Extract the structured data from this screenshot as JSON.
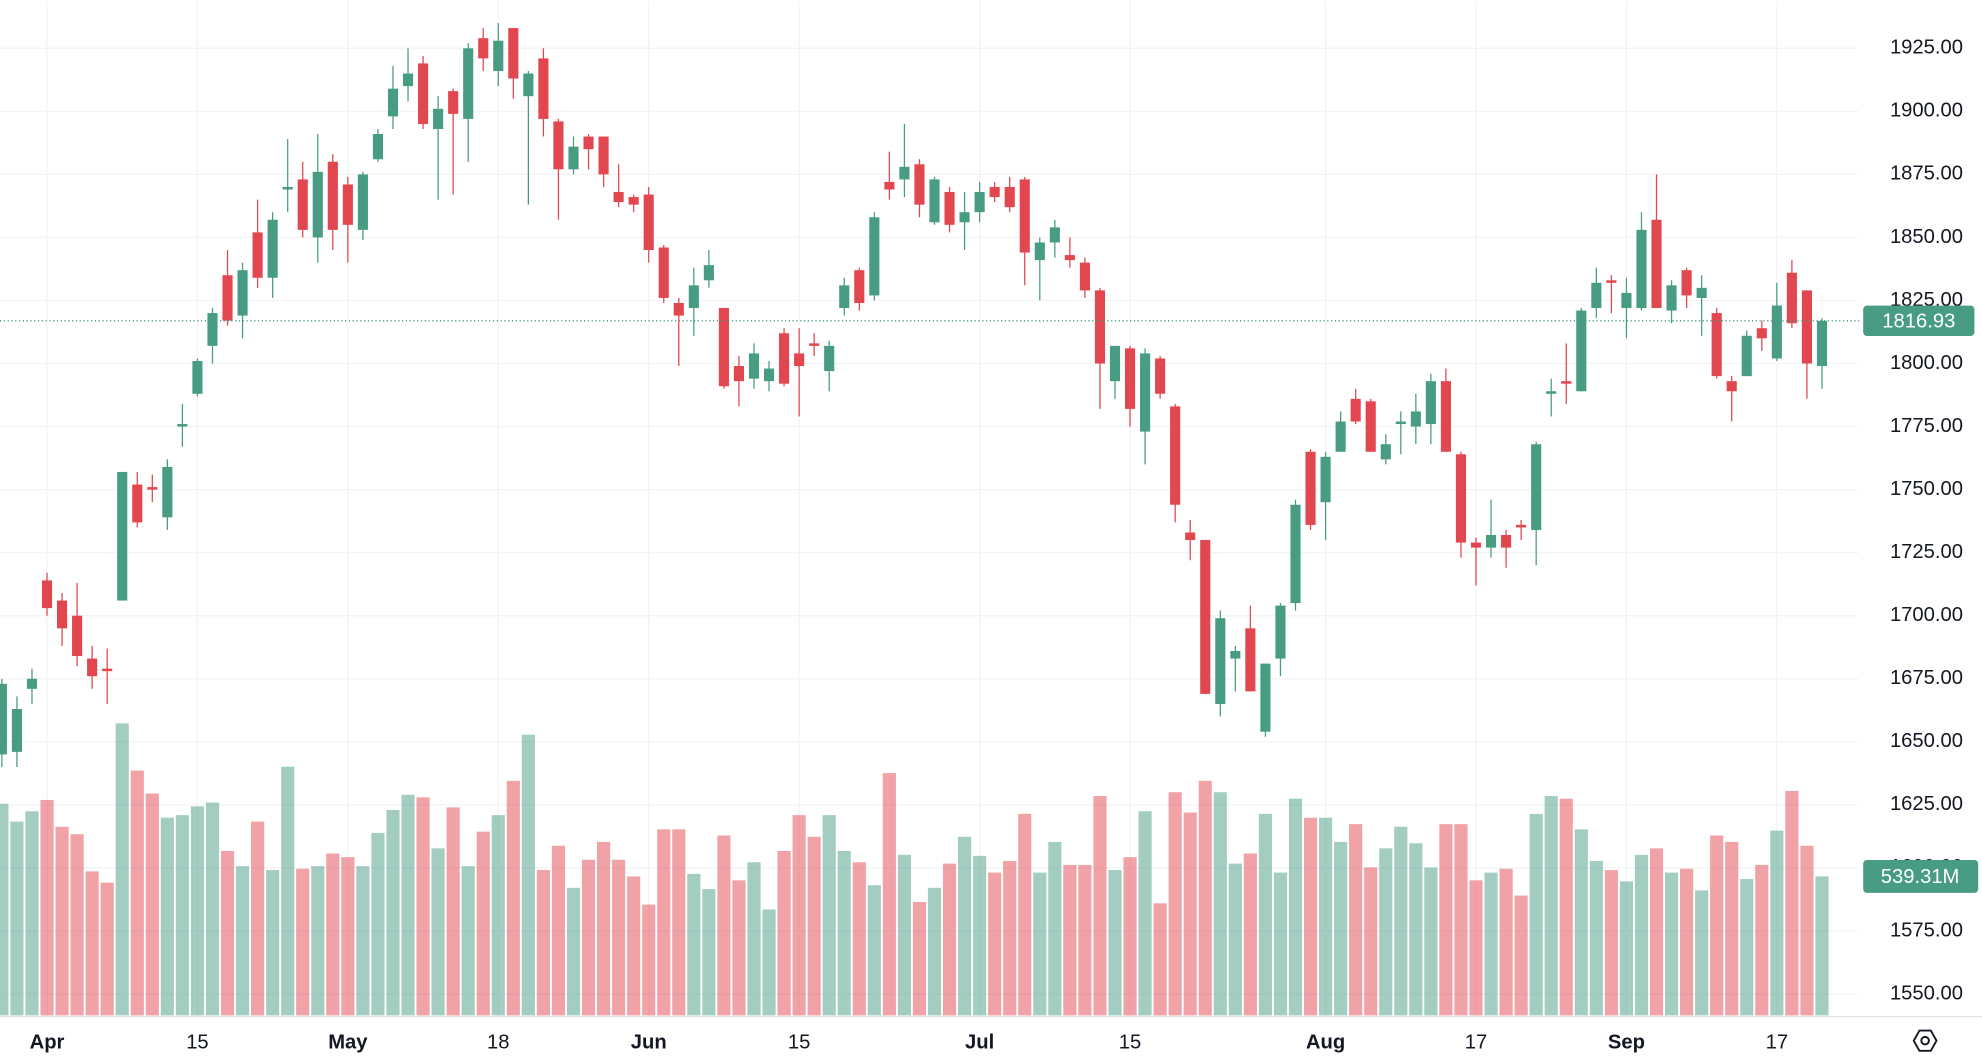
{
  "chart_data": {
    "type": "candlestick",
    "up_color": "#479c83",
    "down_color": "#e2464f",
    "grid": true,
    "categories": [
      null,
      null,
      null,
      "Apr",
      null,
      null,
      null,
      null,
      null,
      null,
      null,
      null,
      null,
      "15",
      null,
      null,
      null,
      null,
      null,
      null,
      null,
      null,
      null,
      "May",
      null,
      null,
      null,
      null,
      null,
      null,
      null,
      null,
      null,
      "18",
      null,
      null,
      null,
      null,
      null,
      null,
      null,
      null,
      null,
      "Jun",
      null,
      null,
      null,
      null,
      null,
      null,
      null,
      null,
      null,
      "15",
      null,
      null,
      null,
      null,
      null,
      null,
      null,
      null,
      null,
      null,
      null,
      "Jul",
      null,
      null,
      null,
      null,
      null,
      null,
      null,
      null,
      null,
      "15",
      null,
      null,
      null,
      null,
      null,
      null,
      null,
      null,
      null,
      null,
      null,
      null,
      "Aug",
      null,
      null,
      null,
      null,
      null,
      null,
      null,
      null,
      null,
      "17",
      null,
      null,
      null,
      null,
      null,
      null,
      null,
      null,
      null,
      "Sep",
      null,
      null,
      null,
      null,
      null,
      null,
      null,
      null,
      null,
      "17",
      null,
      null,
      null
    ],
    "open": [
      1645,
      1646,
      1671,
      1714,
      1706,
      1700,
      1683,
      1679,
      1706,
      1752,
      1751,
      1739,
      1775,
      1788,
      1807,
      1835,
      1819,
      1852,
      1834,
      1869,
      1873,
      1850,
      1880,
      1871,
      1853,
      1881,
      1898,
      1910,
      1919,
      1893,
      1908,
      1897,
      1929,
      1916,
      1933,
      1906,
      1921,
      1896,
      1877,
      1890,
      1890,
      1868,
      1866,
      1867,
      1846,
      1824,
      1822,
      1833,
      1822,
      1799,
      1794,
      1793,
      1812,
      1804,
      1808,
      1797,
      1822,
      1837,
      1827,
      1872,
      1873,
      1879,
      1856,
      1868,
      1856,
      1860,
      1870,
      1870,
      1873,
      1841,
      1848,
      1843,
      1840,
      1829,
      1793,
      1806,
      1773,
      1802,
      1783,
      1733,
      1730,
      1665,
      1683,
      1695,
      1654,
      1683,
      1705,
      1765,
      1745,
      1765,
      1786,
      1785,
      1762,
      1776,
      1775,
      1776,
      1793,
      1764,
      1729,
      1727,
      1732,
      1736,
      1734,
      1788,
      1793,
      1789,
      1822,
      1833,
      1822,
      1822,
      1857,
      1821,
      1837,
      1826,
      1820,
      1793,
      1795,
      1814,
      1802,
      1836,
      1829,
      1799
    ],
    "high": [
      1675,
      1668,
      1679,
      1717,
      1709,
      1713,
      1688,
      1687,
      1757,
      1757,
      1756,
      1762,
      1784,
      1802,
      1822,
      1845,
      1840,
      1865,
      1860,
      1889,
      1880,
      1891,
      1883,
      1874,
      1876,
      1893,
      1918,
      1925,
      1922,
      1906,
      1909,
      1927,
      1933,
      1935,
      1933,
      1916,
      1925,
      1897,
      1890,
      1891,
      1890,
      1879,
      1867,
      1870,
      1847,
      1826,
      1838,
      1845,
      1822,
      1803,
      1808,
      1801,
      1814,
      1814,
      1812,
      1809,
      1834,
      1838,
      1860,
      1884,
      1895,
      1881,
      1874,
      1870,
      1868,
      1872,
      1872,
      1874,
      1874,
      1850,
      1857,
      1850,
      1842,
      1830,
      1807,
      1807,
      1806,
      1803,
      1784,
      1738,
      1730,
      1702,
      1688,
      1704,
      1681,
      1705,
      1746,
      1766,
      1765,
      1781,
      1790,
      1786,
      1772,
      1781,
      1788,
      1796,
      1798,
      1765,
      1731,
      1746,
      1734,
      1738,
      1769,
      1794,
      1808,
      1822,
      1838,
      1835,
      1834,
      1860,
      1875,
      1833,
      1838,
      1835,
      1822,
      1795,
      1813,
      1817,
      1832,
      1841,
      1829,
      1818
    ],
    "low": [
      1640,
      1640,
      1665,
      1700,
      1688,
      1680,
      1671,
      1665,
      1706,
      1735,
      1745,
      1734,
      1767,
      1787,
      1800,
      1815,
      1810,
      1830,
      1826,
      1860,
      1850,
      1840,
      1845,
      1840,
      1849,
      1880,
      1893,
      1904,
      1893,
      1865,
      1867,
      1880,
      1916,
      1910,
      1905,
      1863,
      1890,
      1857,
      1875,
      1877,
      1870,
      1862,
      1860,
      1840,
      1824,
      1799,
      1811,
      1830,
      1790,
      1783,
      1790,
      1789,
      1791,
      1779,
      1803,
      1789,
      1819,
      1821,
      1825,
      1865,
      1866,
      1858,
      1855,
      1852,
      1845,
      1856,
      1864,
      1860,
      1831,
      1825,
      1842,
      1838,
      1826,
      1782,
      1786,
      1775,
      1760,
      1786,
      1737,
      1722,
      1669,
      1660,
      1670,
      1670,
      1652,
      1676,
      1702,
      1734,
      1730,
      1765,
      1776,
      1765,
      1760,
      1764,
      1768,
      1768,
      1765,
      1723,
      1712,
      1723,
      1719,
      1730,
      1720,
      1779,
      1784,
      1789,
      1818,
      1820,
      1810,
      1821,
      1822,
      1816,
      1822,
      1811,
      1794,
      1777,
      1795,
      1805,
      1801,
      1814,
      1786,
      1790
    ],
    "close": [
      1673,
      1663,
      1675,
      1703,
      1695,
      1684,
      1676,
      1678,
      1757,
      1737,
      1750,
      1759,
      1776,
      1801,
      1820,
      1817,
      1837,
      1834,
      1857,
      1870,
      1853,
      1876,
      1853,
      1855,
      1875,
      1891,
      1909,
      1915,
      1895,
      1901,
      1899,
      1925,
      1921,
      1928,
      1913,
      1915,
      1897,
      1877,
      1886,
      1885,
      1875,
      1864,
      1863,
      1845,
      1826,
      1819,
      1831,
      1839,
      1791,
      1793,
      1804,
      1798,
      1792,
      1799,
      1807,
      1807,
      1831,
      1824,
      1858,
      1869,
      1878,
      1863,
      1873,
      1855,
      1860,
      1868,
      1866,
      1862,
      1844,
      1848,
      1854,
      1841,
      1829,
      1800,
      1807,
      1782,
      1804,
      1788,
      1744,
      1730,
      1669,
      1699,
      1686,
      1670,
      1681,
      1704,
      1744,
      1736,
      1763,
      1777,
      1777,
      1765,
      1768,
      1777,
      1781,
      1793,
      1765,
      1729,
      1727,
      1732,
      1727,
      1735,
      1768,
      1789,
      1792,
      1821,
      1832,
      1832,
      1828,
      1853,
      1822,
      1831,
      1827,
      1830,
      1795,
      1789,
      1811,
      1810,
      1823,
      1816,
      1800,
      1816.93
    ],
    "volume": {
      "values": [
        821,
        752,
        792,
        836,
        732,
        703,
        559,
        515,
        1133,
        950,
        861,
        767,
        777,
        811,
        826,
        638,
        579,
        752,
        564,
        965,
        569,
        579,
        628,
        614,
        579,
        708,
        797,
        856,
        846,
        648,
        807,
        579,
        713,
        777,
        910,
        1089,
        564,
        658,
        495,
        604,
        673,
        604,
        539,
        430,
        722,
        722,
        549,
        490,
        698,
        524,
        594,
        411,
        638,
        777,
        693,
        777,
        638,
        594,
        505,
        940,
        623,
        440,
        495,
        589,
        693,
        619,
        554,
        599,
        782,
        554,
        673,
        584,
        584,
        851,
        564,
        614,
        792,
        435,
        866,
        787,
        910,
        866,
        589,
        628,
        782,
        554,
        841,
        767,
        767,
        673,
        742,
        574,
        648,
        732,
        668,
        574,
        742,
        742,
        524,
        554,
        569,
        465,
        782,
        851,
        841,
        722,
        599,
        564,
        520,
        623,
        648,
        554,
        569,
        485,
        698,
        673,
        529,
        584,
        717,
        871,
        658,
        539.31
      ],
      "last_value_label": "539.31M"
    },
    "ylim": [
      1540,
      1943.5
    ],
    "yticks": [
      {
        "value": 1550,
        "label": "1550.00"
      },
      {
        "value": 1575,
        "label": "1575.00"
      },
      {
        "value": 1600,
        "label": "1600.00"
      },
      {
        "value": 1625,
        "label": "1625.00"
      },
      {
        "value": 1650,
        "label": "1650.00"
      },
      {
        "value": 1675,
        "label": "1675.00"
      },
      {
        "value": 1700,
        "label": "1700.00"
      },
      {
        "value": 1725,
        "label": "1725.00"
      },
      {
        "value": 1750,
        "label": "1750.00"
      },
      {
        "value": 1775,
        "label": "1775.00"
      },
      {
        "value": 1800,
        "label": "1800.00"
      },
      {
        "value": 1825,
        "label": "1825.00"
      },
      {
        "value": 1850,
        "label": "1850.00"
      },
      {
        "value": 1875,
        "label": "1875.00"
      },
      {
        "value": 1900,
        "label": "1900.00"
      },
      {
        "value": 1925,
        "label": "1925.00"
      }
    ]
  }
}
